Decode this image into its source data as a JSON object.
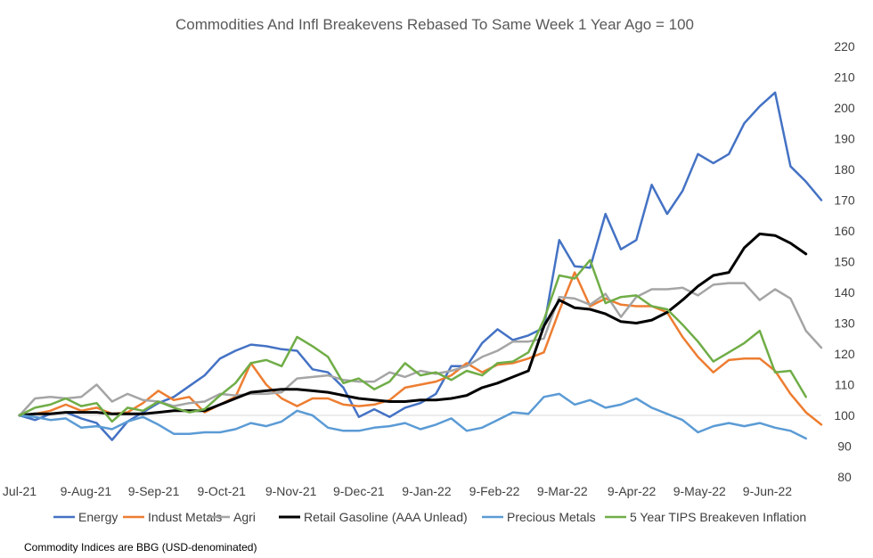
{
  "chart_data": {
    "type": "line",
    "title": "Commodities And Infl Breakevens Rebased To Same Week 1 Year Ago = 100",
    "xlabel": "",
    "ylabel": "",
    "ylim": [
      80,
      220
    ],
    "yticks": [
      80,
      90,
      100,
      110,
      120,
      130,
      140,
      150,
      160,
      170,
      180,
      190,
      200,
      210,
      220
    ],
    "x_ticklabels": [
      "Jul-21",
      "9-Aug-21",
      "9-Sep-21",
      "9-Oct-21",
      "9-Nov-21",
      "9-Dec-21",
      "9-Jan-22",
      "9-Feb-22",
      "9-Mar-22",
      "9-Apr-22",
      "9-May-22",
      "9-Jun-22"
    ],
    "x_tick_week_index": [
      0,
      4.3,
      8.7,
      13.1,
      17.6,
      22,
      26.4,
      30.8,
      35.2,
      39.7,
      44.1,
      48.5
    ],
    "grid": false,
    "legend_position": "bottom",
    "footnote": "Commodity Indices are BBG (USD-denominated)",
    "series": [
      {
        "name": "Energy",
        "color": "#4472C4",
        "values": [
          100,
          98.5,
          100.5,
          101,
          99,
          97.5,
          92,
          98,
          101,
          104,
          106,
          109.5,
          113,
          118.5,
          121,
          123,
          122.5,
          121.5,
          121,
          115,
          114,
          109,
          99.5,
          102,
          99.5,
          102.5,
          104,
          107,
          116,
          116,
          123.5,
          128,
          124.5,
          126,
          128.5,
          157,
          148.5,
          148,
          165.5,
          154,
          157,
          175,
          165.5,
          173,
          185,
          182,
          185,
          195,
          200.5,
          205,
          181,
          176,
          170
        ]
      },
      {
        "name": "Indust Metals",
        "color": "#ED7D31",
        "values": [
          100,
          100.5,
          101.5,
          103.5,
          101.5,
          102.5,
          100.5,
          101,
          104,
          108,
          105,
          106,
          101,
          103.5,
          106,
          117,
          110,
          105.5,
          103,
          105.5,
          105.5,
          103.5,
          103,
          103.5,
          105,
          109,
          110,
          111,
          113,
          117,
          114,
          116.5,
          117,
          118.5,
          120.5,
          134,
          146.5,
          135.5,
          138,
          136,
          135.5,
          135.5,
          133.5,
          125.5,
          119,
          114,
          118,
          118.5,
          118.5,
          114.5,
          107,
          101,
          97
        ]
      },
      {
        "name": "Agri",
        "color": "#A5A5A5",
        "values": [
          100,
          105.5,
          106,
          105.5,
          106,
          110,
          104.5,
          107,
          105,
          104.5,
          103,
          104,
          104.5,
          107,
          106.5,
          107,
          107,
          107.5,
          112,
          112.5,
          113,
          111.5,
          111,
          111,
          114,
          112.5,
          114.5,
          113.5,
          114.5,
          116,
          119,
          121,
          124,
          124,
          125,
          138.5,
          138,
          136,
          139.5,
          132,
          138.5,
          141,
          141,
          141.5,
          139,
          142.5,
          143,
          143,
          137.5,
          141,
          138,
          127.5,
          122
        ]
      },
      {
        "name": "Retail Gasoline (AAA Unlead)",
        "color": "#000000",
        "values": [
          100,
          100.5,
          100.5,
          101,
          101,
          101,
          100.5,
          100.5,
          100.5,
          101,
          101.5,
          101.5,
          101.5,
          103.5,
          105.5,
          107.5,
          108,
          108.5,
          108.5,
          108,
          107.5,
          106.5,
          105.5,
          105,
          104.5,
          104.5,
          105,
          105,
          105.5,
          106.5,
          109,
          110.5,
          112.5,
          114.5,
          129,
          137.5,
          135,
          134.5,
          133,
          130.5,
          130,
          131,
          133.5,
          137.5,
          142,
          145.5,
          146.5,
          154.5,
          159,
          158.5,
          156,
          152.5
        ]
      },
      {
        "name": "Precious Metals",
        "color": "#5B9BD5",
        "values": [
          100,
          99.5,
          98.5,
          99,
          96,
          96.5,
          95.5,
          98,
          99.5,
          97,
          94,
          94,
          94.5,
          94.5,
          95.5,
          97.5,
          96.5,
          98,
          101.5,
          100,
          96,
          95,
          95,
          96,
          96.5,
          97.5,
          95.5,
          97,
          99,
          95,
          96,
          98.5,
          101,
          100.5,
          106,
          107,
          103.5,
          105,
          102.5,
          103.5,
          105.5,
          102.5,
          100.5,
          98.5,
          94.5,
          96.5,
          97.5,
          96.5,
          97.5,
          96,
          95,
          92.5
        ]
      },
      {
        "name": "5 Year TIPS Breakeven Inflation",
        "color": "#70AD47",
        "values": [
          100,
          102.5,
          103.5,
          105.5,
          103,
          104,
          98,
          102.5,
          101.5,
          104.5,
          102.5,
          101,
          102,
          106.5,
          110.5,
          117,
          118,
          116,
          125.5,
          122.5,
          119,
          110.5,
          112,
          108.5,
          111,
          117,
          113,
          114,
          111.5,
          114.5,
          113,
          117,
          117.5,
          120.5,
          131,
          145.5,
          144.5,
          150.5,
          136.5,
          138.5,
          139,
          135.5,
          134.5,
          129.5,
          124,
          117.5,
          120.5,
          123.5,
          127.5,
          114,
          114.5,
          106
        ]
      }
    ]
  }
}
